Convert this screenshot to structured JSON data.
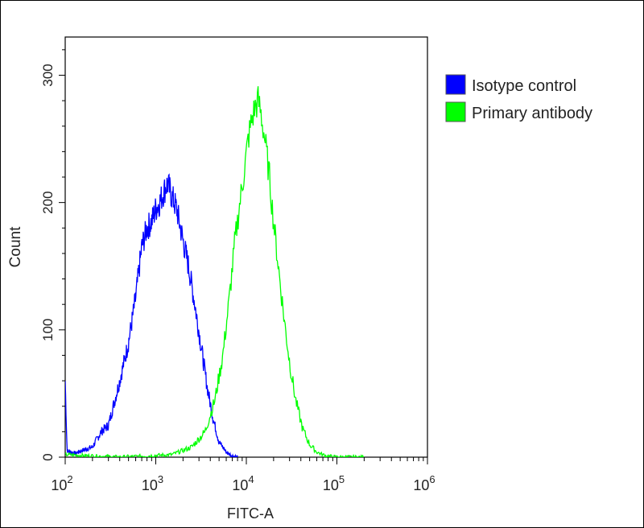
{
  "chart_data": {
    "type": "line",
    "title": "",
    "xlabel": "FITC-A",
    "ylabel": "Count",
    "x_scale": "log",
    "xlim": [
      100,
      1000000
    ],
    "ylim": [
      0,
      330
    ],
    "x_ticks": [
      {
        "value": 100,
        "base": "10",
        "exp": "2"
      },
      {
        "value": 1000,
        "base": "10",
        "exp": "3"
      },
      {
        "value": 10000,
        "base": "10",
        "exp": "4"
      },
      {
        "value": 100000,
        "base": "10",
        "exp": "5"
      },
      {
        "value": 1000000,
        "base": "10",
        "exp": "6"
      }
    ],
    "y_ticks": [
      {
        "value": 0,
        "label": "0"
      },
      {
        "value": 100,
        "label": "100"
      },
      {
        "value": 200,
        "label": "200"
      },
      {
        "value": 300,
        "label": "300"
      }
    ],
    "legend": {
      "placement": "top-right"
    },
    "grid": false,
    "series": [
      {
        "name": "Isotype control",
        "color": "#0000ff",
        "points": [
          [
            100,
            60
          ],
          [
            105,
            5
          ],
          [
            130,
            3
          ],
          [
            150,
            5
          ],
          [
            200,
            8
          ],
          [
            250,
            20
          ],
          [
            300,
            25
          ],
          [
            400,
            60
          ],
          [
            500,
            90
          ],
          [
            600,
            125
          ],
          [
            700,
            165
          ],
          [
            800,
            180
          ],
          [
            900,
            185
          ],
          [
            1000,
            195
          ],
          [
            1100,
            200
          ],
          [
            1250,
            210
          ],
          [
            1350,
            215
          ],
          [
            1500,
            205
          ],
          [
            1700,
            195
          ],
          [
            2000,
            170
          ],
          [
            2300,
            150
          ],
          [
            2700,
            120
          ],
          [
            3200,
            85
          ],
          [
            3700,
            55
          ],
          [
            4300,
            30
          ],
          [
            5000,
            12
          ],
          [
            6000,
            4
          ],
          [
            7000,
            1
          ],
          [
            8000,
            0
          ]
        ]
      },
      {
        "name": "Primary antibody",
        "color": "#00ff00",
        "points": [
          [
            100,
            2
          ],
          [
            200,
            1
          ],
          [
            400,
            0
          ],
          [
            800,
            1
          ],
          [
            1500,
            2
          ],
          [
            2500,
            8
          ],
          [
            3500,
            20
          ],
          [
            4500,
            45
          ],
          [
            5500,
            80
          ],
          [
            6500,
            125
          ],
          [
            7500,
            170
          ],
          [
            8500,
            200
          ],
          [
            9500,
            225
          ],
          [
            10500,
            250
          ],
          [
            11500,
            265
          ],
          [
            12500,
            275
          ],
          [
            13500,
            280
          ],
          [
            14500,
            270
          ],
          [
            16000,
            250
          ],
          [
            18000,
            220
          ],
          [
            20000,
            185
          ],
          [
            23000,
            145
          ],
          [
            26000,
            110
          ],
          [
            30000,
            75
          ],
          [
            35000,
            45
          ],
          [
            42000,
            22
          ],
          [
            50000,
            10
          ],
          [
            60000,
            4
          ],
          [
            75000,
            1
          ],
          [
            100000,
            0
          ],
          [
            200000,
            0
          ]
        ]
      }
    ]
  }
}
